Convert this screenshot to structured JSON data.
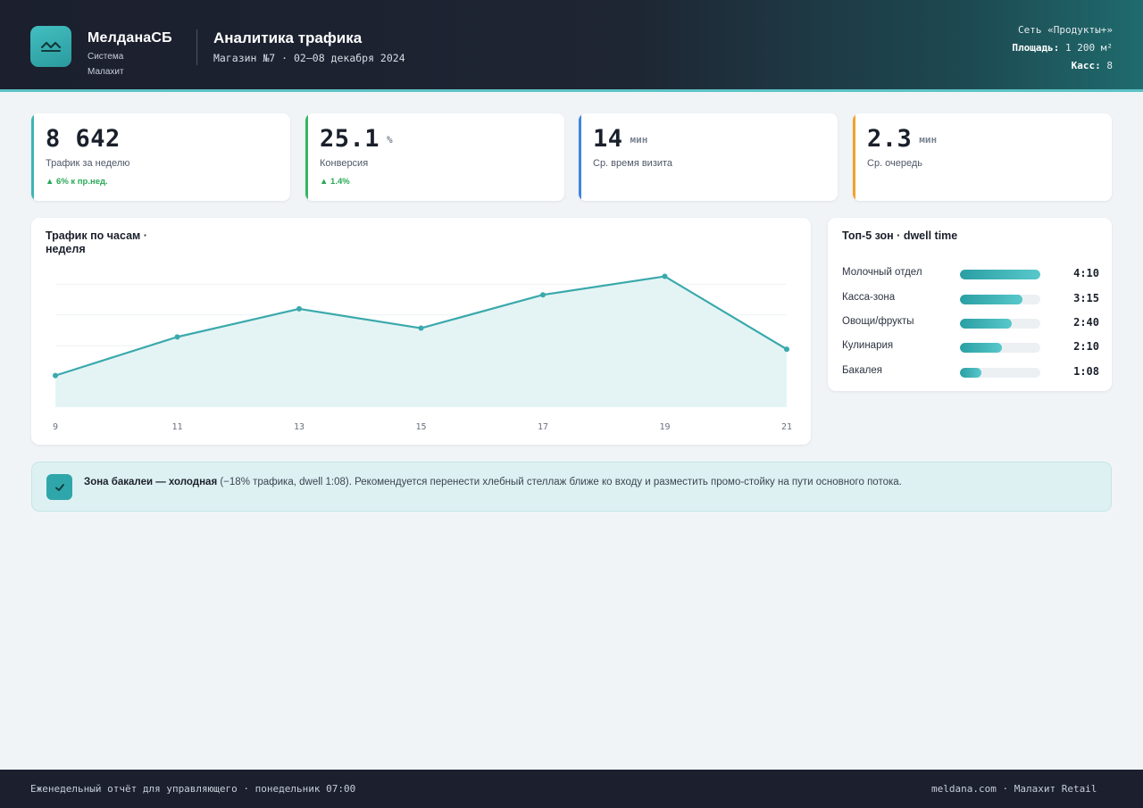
{
  "header": {
    "brand_name": "МелданаСБ",
    "brand_sub": "Система Малахит",
    "title": "Аналитика трафика",
    "subtitle": "Магазин №7 · 02–08 декабря 2024",
    "network": "Сеть «Продукты+»",
    "area_label": "Площадь:",
    "area_value": "1 200 м²",
    "registers_label": "Касс:",
    "registers_value": "8"
  },
  "kpis": [
    {
      "value": "8 642",
      "unit": "",
      "label": "Трафик за неделю",
      "delta": "▲ 6% к пр.нед.",
      "accent": "#3db4b6"
    },
    {
      "value": "25.1",
      "unit": "%",
      "label": "Конверсия",
      "delta": "▲ 1.4%",
      "accent": "#35b764"
    },
    {
      "value": "14",
      "unit": "мин",
      "label": "Ср. время визита",
      "delta": "",
      "accent": "#3c86e0"
    },
    {
      "value": "2.3",
      "unit": "мин",
      "label": "Ср. очередь",
      "delta": "",
      "accent": "#f0a12b"
    }
  ],
  "traffic_panel": {
    "title": "Трафик по часам · неделя"
  },
  "chart_data": {
    "type": "area",
    "title": "Трафик по часам · неделя",
    "x": [
      9,
      11,
      13,
      15,
      17,
      19,
      21
    ],
    "values": [
      36,
      80,
      112,
      90,
      128,
      149,
      66
    ],
    "ylim": [
      0,
      175
    ],
    "grid": true,
    "legend": "none",
    "color": "#3aa9ac"
  },
  "zones_panel": {
    "title": "Топ-5 зон · dwell time",
    "items": [
      {
        "label": "Молочный отдел",
        "time": "4:10",
        "fraction": 1.0
      },
      {
        "label": "Касса-зона",
        "time": "3:15",
        "fraction": 0.78
      },
      {
        "label": "Овощи/фрукты",
        "time": "2:40",
        "fraction": 0.64
      },
      {
        "label": "Кулинария",
        "time": "2:10",
        "fraction": 0.52
      },
      {
        "label": "Бакалея",
        "time": "1:08",
        "fraction": 0.27
      }
    ]
  },
  "alert": {
    "bold": "Зона бакалеи — холодная",
    "text": " (−18% трафика, dwell 1:08). Рекомендуется перенести хлебный стеллаж ближе ко входу и разместить промо-стойку на пути основного потока."
  },
  "footer": {
    "left": "Еженедельный отчёт для управляющего · понедельник 07:00",
    "right": "meldana.com · Малахит Retail"
  }
}
